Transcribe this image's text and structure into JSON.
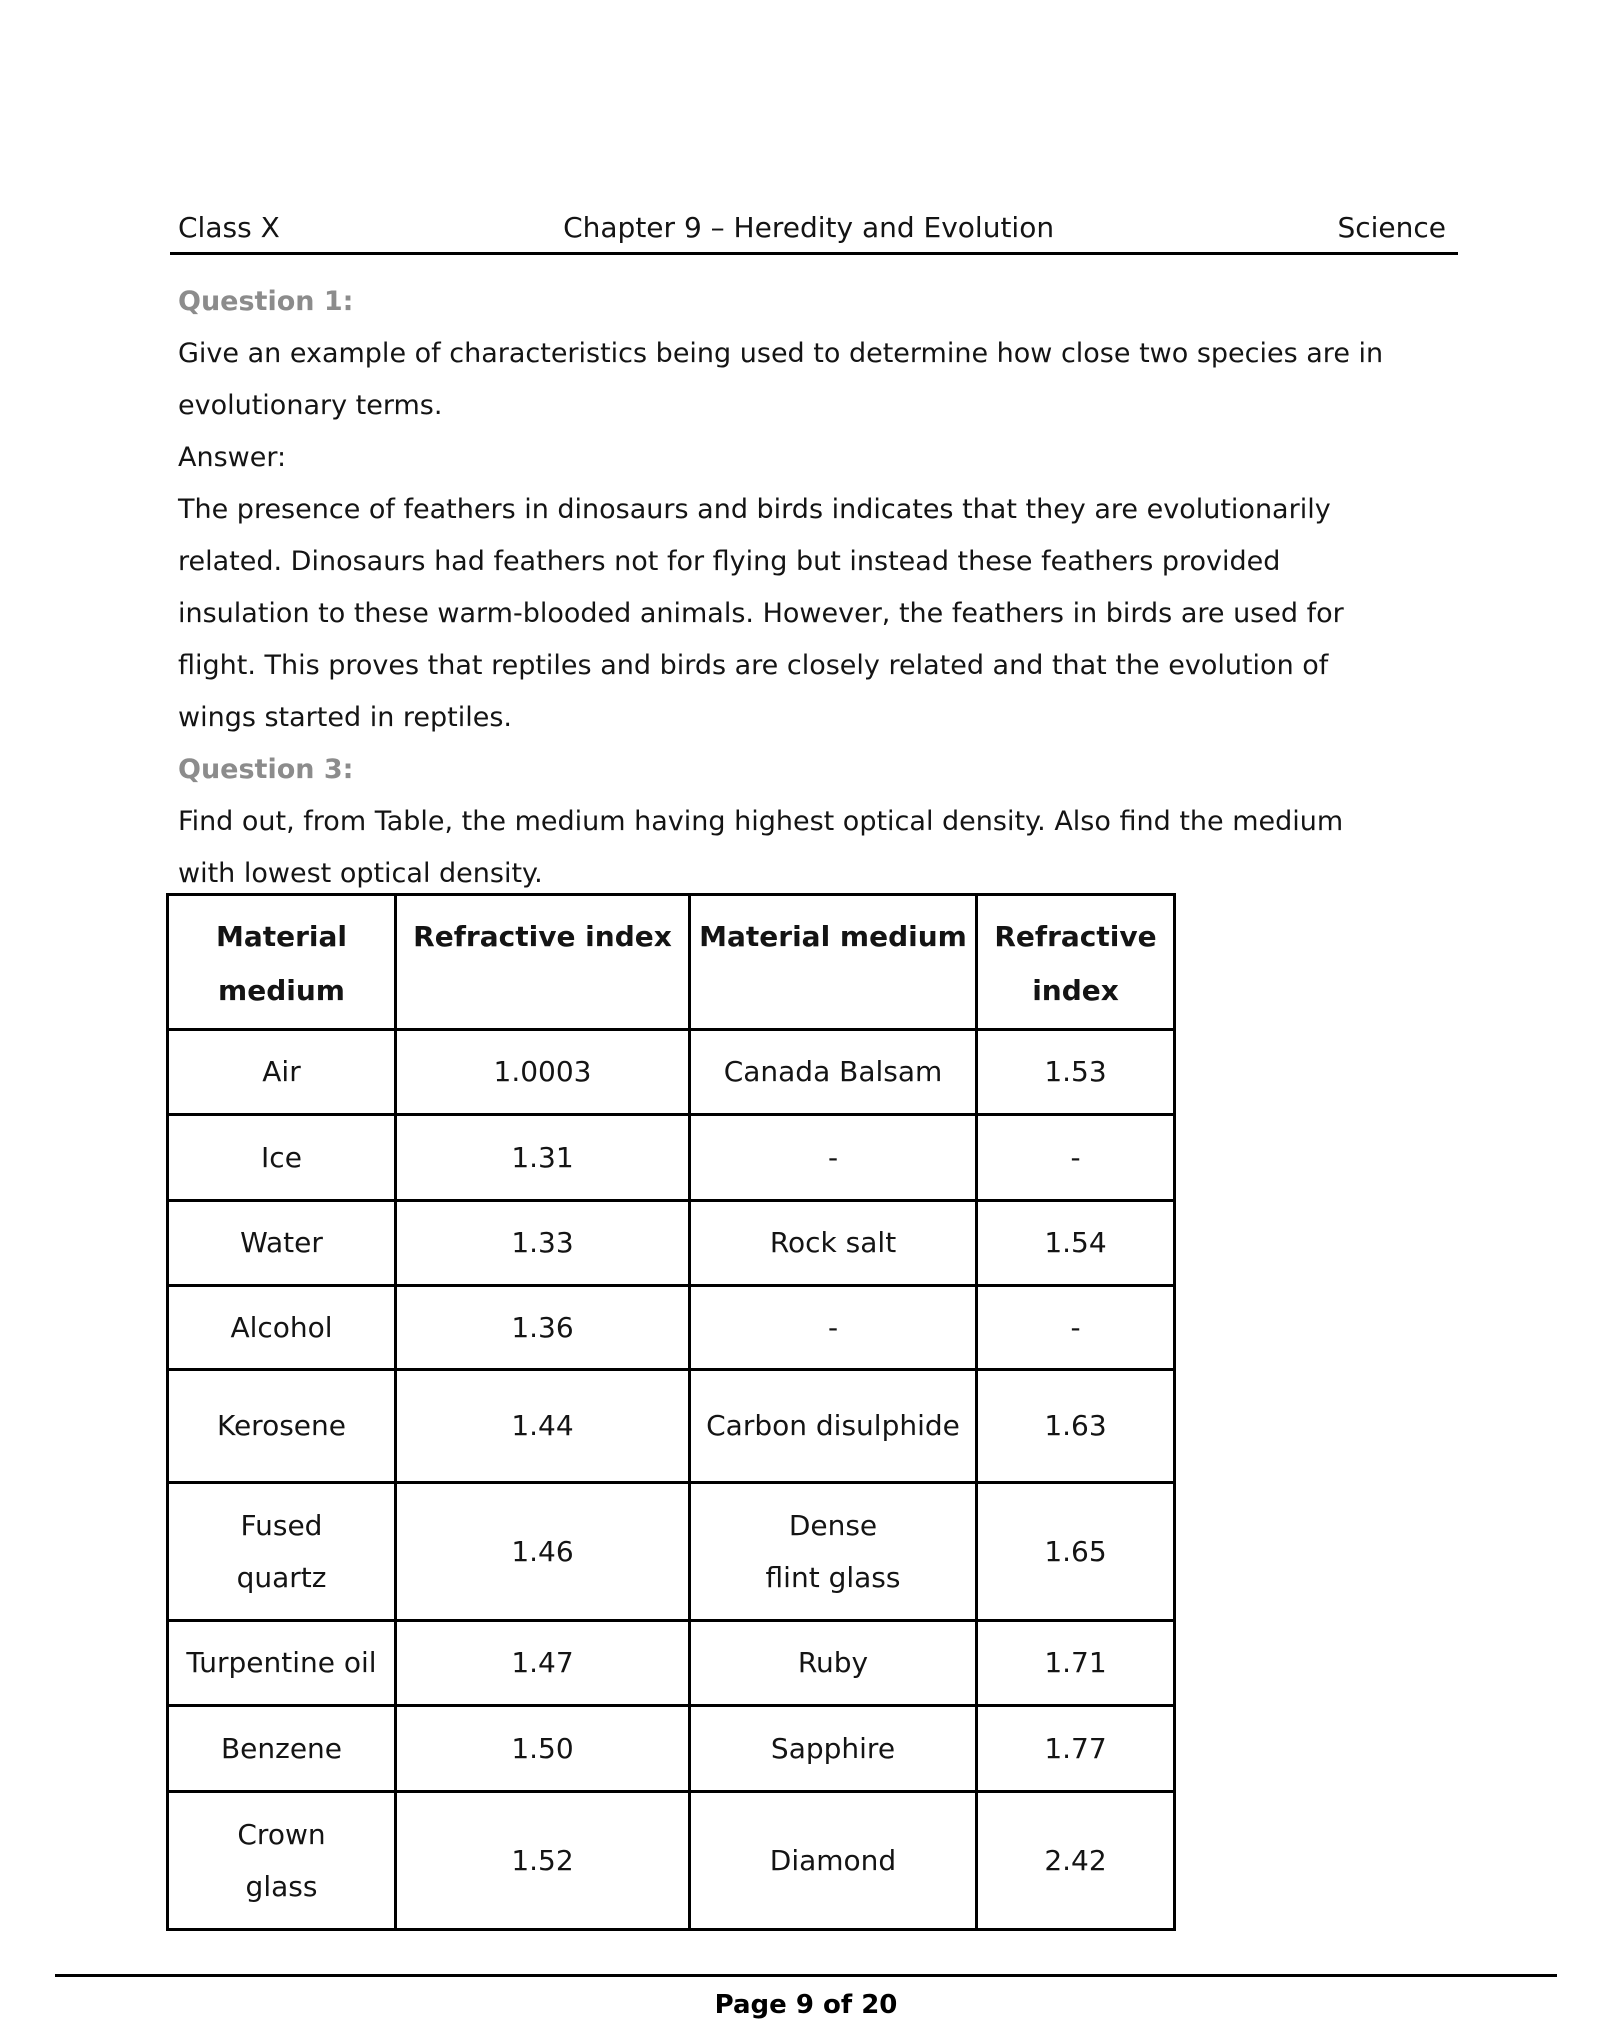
{
  "header": {
    "left": "Class X",
    "center": "Chapter 9 – Heredity and Evolution",
    "right": "Science"
  },
  "content": {
    "q1_label": "Question 1:",
    "q1_lines": [
      "Give an example of characteristics being used to determine how close two species are in",
      "evolutionary terms."
    ],
    "answer_label": "Answer:",
    "answer_lines": [
      "The presence of feathers in dinosaurs and birds indicates that they are evolutionarily",
      "related. Dinosaurs had feathers not for flying but instead these feathers provided",
      "insulation to these warm-blooded animals. However, the feathers in birds are used for",
      "flight. This proves that reptiles and birds are closely related and that the evolution of",
      "wings started in reptiles."
    ],
    "q3_label": "Question 3:",
    "q3_lines": [
      "Find out, from Table, the medium having highest optical density. Also find the medium",
      "with lowest optical density."
    ]
  },
  "table": {
    "headers": [
      "Material medium",
      "Refractive index",
      "Material medium",
      "Refractive index"
    ],
    "rows": [
      {
        "cells": [
          "Air",
          "1.0003",
          "Canada Balsam",
          "1.53"
        ]
      },
      {
        "cells": [
          "Ice",
          "1.31",
          "-",
          "-"
        ]
      },
      {
        "cells": [
          "Water",
          "1.33",
          "Rock salt",
          "1.54"
        ]
      },
      {
        "cells": [
          "Alcohol",
          "1.36",
          "-",
          "-"
        ]
      },
      {
        "cells": [
          "Kerosene",
          "1.44",
          "Carbon disulphide",
          "1.63"
        ]
      },
      {
        "cells": [
          "Fused\nquartz",
          "1.46",
          "Dense\nflint glass",
          "1.65"
        ]
      },
      {
        "cells": [
          "Turpentine oil",
          "1.47",
          "Ruby",
          "1.71"
        ]
      },
      {
        "cells": [
          "Benzene",
          "1.50",
          "Sapphire",
          "1.77"
        ]
      },
      {
        "cells": [
          "Crown\nglass",
          "1.52",
          "Diamond",
          "2.42"
        ]
      }
    ]
  },
  "footer": {
    "page_text": "Page 9 of 20"
  }
}
